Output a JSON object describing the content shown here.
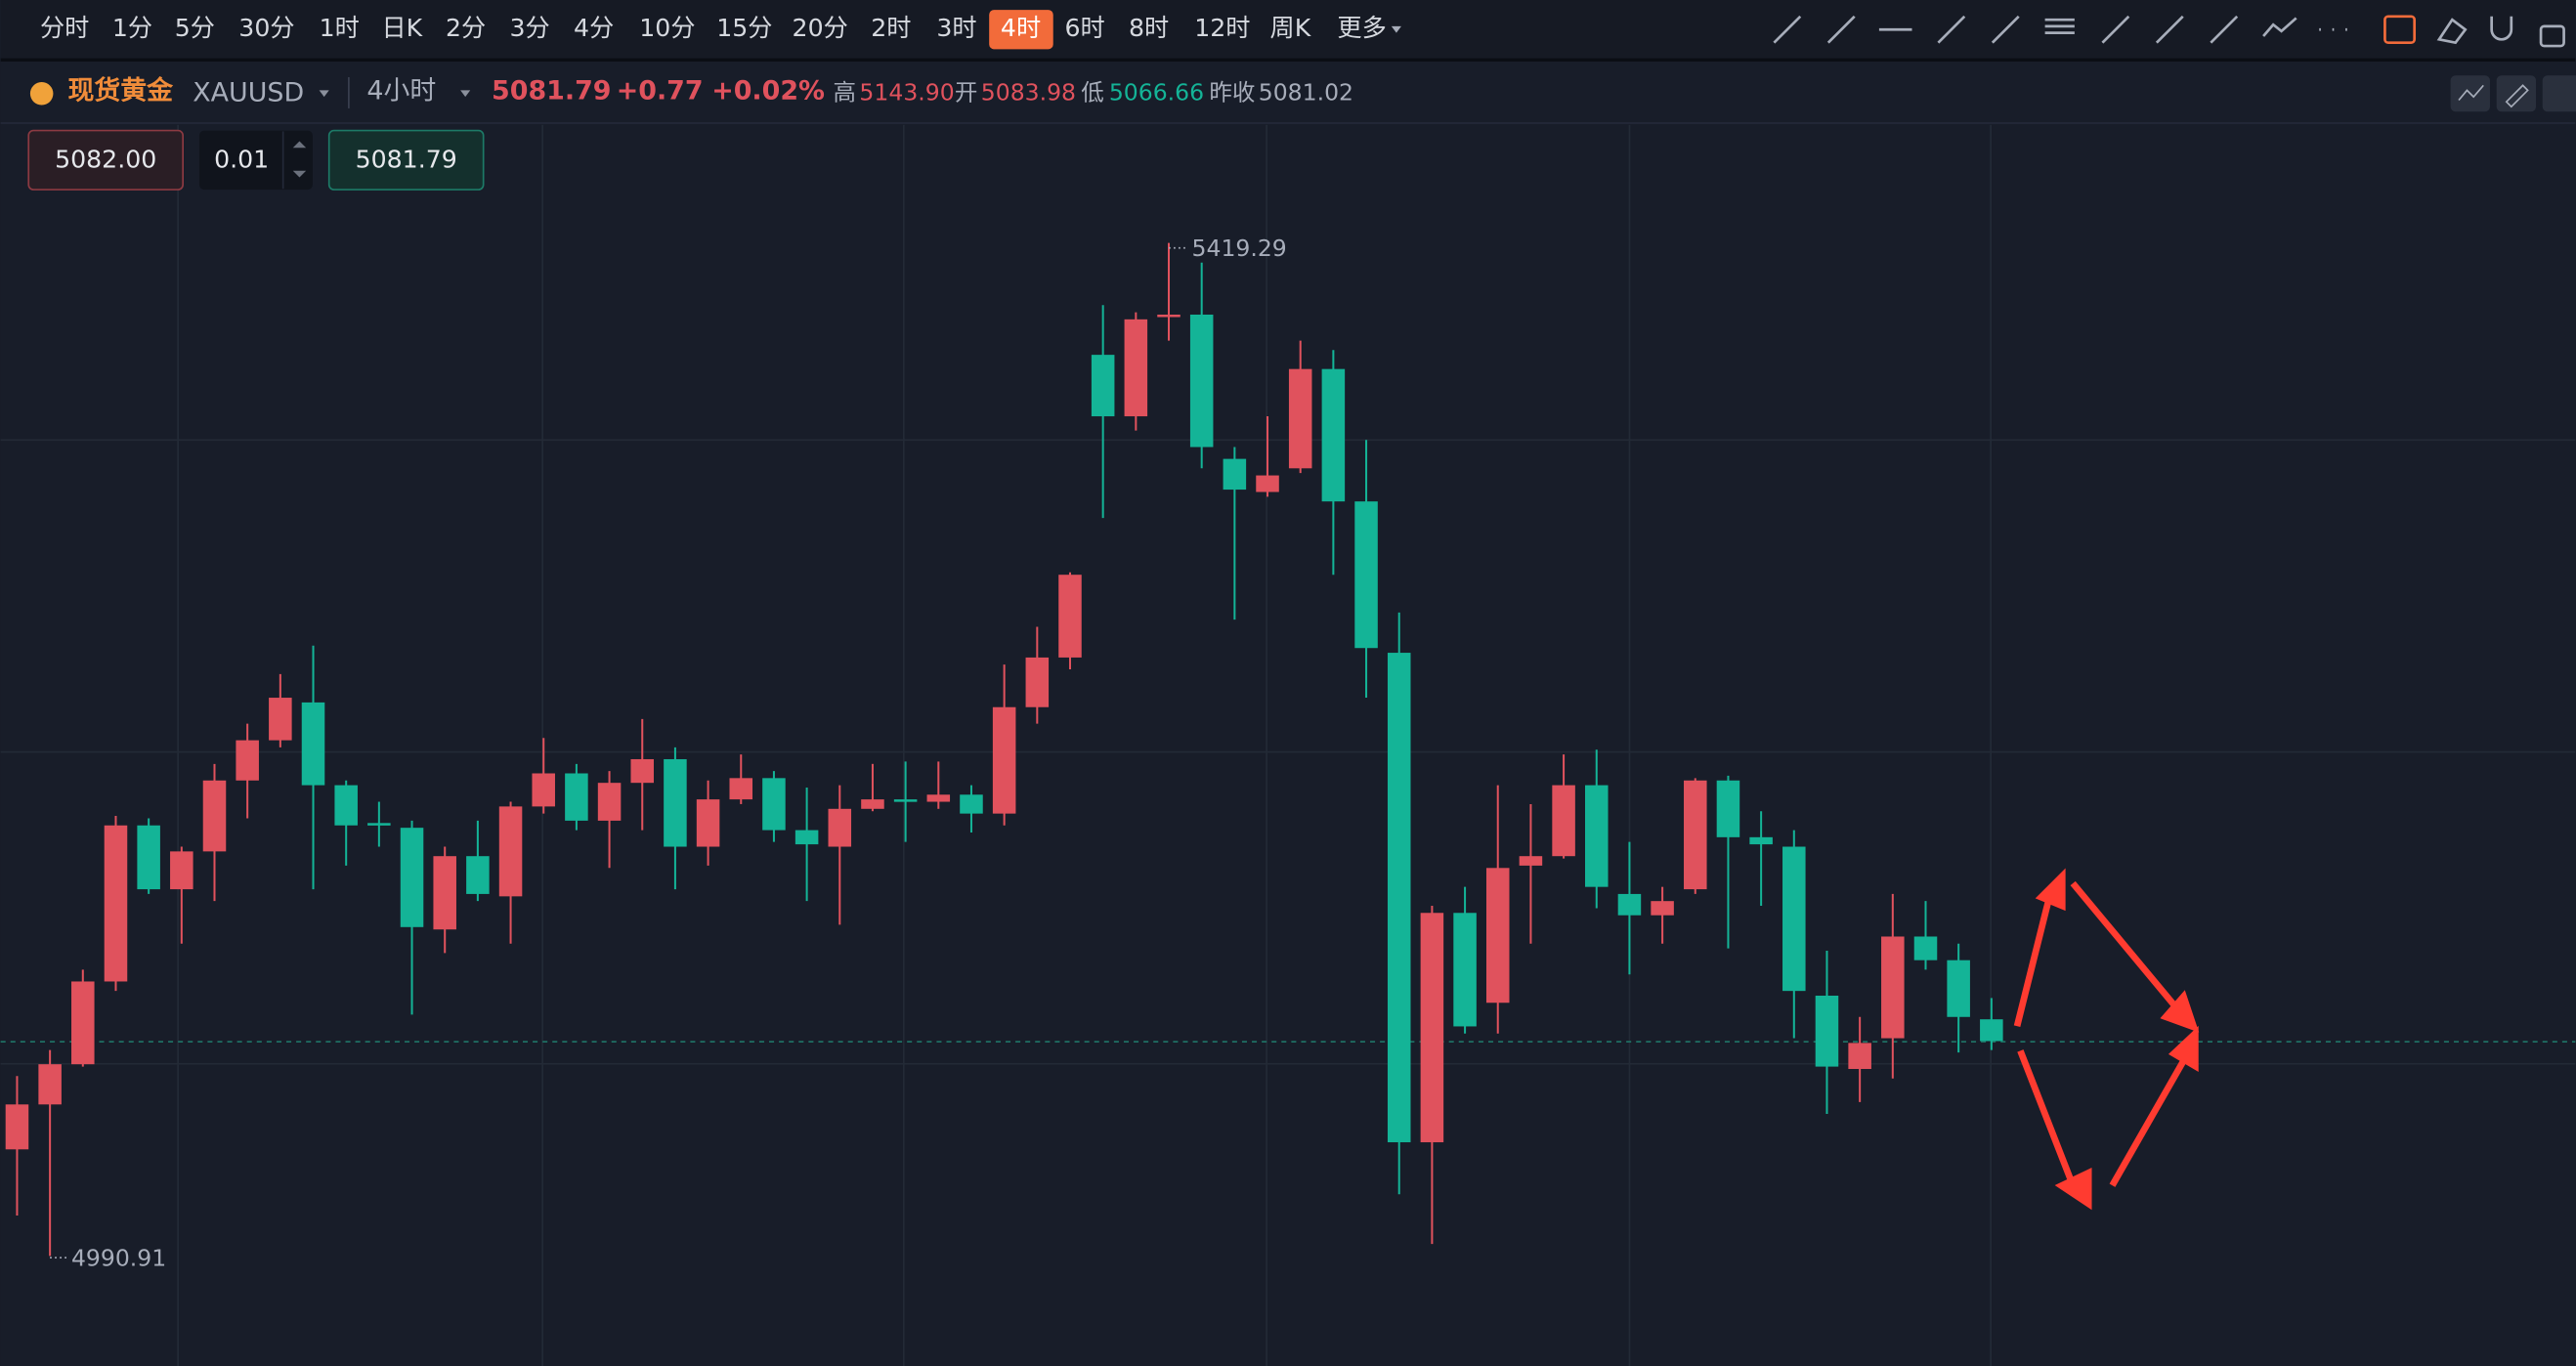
{
  "toolbar": {
    "intervals": [
      "分时",
      "1分",
      "5分",
      "30分",
      "1时",
      "日K",
      "2分",
      "3分",
      "4分",
      "10分",
      "15分",
      "20分",
      "2时",
      "3时",
      "4时",
      "6时",
      "8时",
      "12时",
      "周K",
      "更多"
    ],
    "active": 14
  },
  "header": {
    "name": "现货黄金",
    "symbol": "XAUUSD",
    "interval": "4小时",
    "price": "5081.79",
    "change": "+0.77",
    "change_pct": "+0.02%",
    "high_label": "高",
    "high": "5143.90",
    "open_label": "开",
    "open": "5083.98",
    "low_label": "低",
    "low": "5066.66",
    "prev_label": "昨收",
    "prev": "5081.02"
  },
  "order": {
    "sell": "5082.00",
    "qty": "0.01",
    "buy": "5081.79"
  },
  "chart_data": {
    "type": "candlestick",
    "up_color": "#e0525d",
    "down_color": "#14b497",
    "open": [
      5036,
      5055,
      5072,
      5107,
      5173,
      5146,
      5162,
      5192,
      5209,
      5225,
      5190,
      5174,
      5172,
      5129,
      5160,
      5143,
      5181,
      5195,
      5175,
      5191,
      5201,
      5164,
      5184,
      5193,
      5171,
      5164,
      5180,
      5184,
      5183,
      5186,
      5178,
      5223,
      5244,
      5372,
      5346,
      5388,
      5389,
      5328,
      5314,
      5324,
      5366,
      5310,
      5246,
      5039,
      5136,
      5098,
      5156,
      5160,
      5190,
      5144,
      5135,
      5146,
      5192,
      5168,
      5164,
      5101,
      5070,
      5083,
      5126,
      5116,
      5091
    ],
    "high": [
      5067,
      5078,
      5112,
      5177,
      5176,
      5164,
      5199,
      5216,
      5237,
      5249,
      5192,
      5183,
      5175,
      5164,
      5175,
      5183,
      5210,
      5199,
      5196,
      5218,
      5206,
      5192,
      5203,
      5196,
      5189,
      5190,
      5199,
      5200,
      5200,
      5190,
      5241,
      5257,
      5280,
      5393,
      5390,
      5419.29,
      5411,
      5333,
      5346,
      5378,
      5374,
      5336,
      5263,
      5139,
      5147,
      5190,
      5182,
      5203,
      5205,
      5166,
      5147,
      5193,
      5194,
      5179,
      5171,
      5120,
      5092,
      5144,
      5141,
      5123,
      5100
    ],
    "low": [
      5008,
      4990.91,
      5071,
      5103,
      5144,
      5123,
      5141,
      5176,
      5206,
      5146,
      5156,
      5164,
      5093,
      5119,
      5141,
      5123,
      5178,
      5171,
      5155,
      5171,
      5146,
      5156,
      5182,
      5166,
      5141,
      5131,
      5179,
      5166,
      5180,
      5170,
      5173,
      5216,
      5239,
      5303,
      5340,
      5378,
      5324,
      5260,
      5312,
      5322,
      5279,
      5227,
      5017,
      4996,
      5085,
      5085,
      5123,
      5159,
      5138,
      5110,
      5123,
      5144,
      5121,
      5139,
      5083,
      5051,
      5056,
      5066,
      5112,
      5077,
      5078
    ],
    "close": [
      5055,
      5072,
      5107,
      5173,
      5146,
      5162,
      5192,
      5209,
      5227,
      5190,
      5173,
      5173,
      5130,
      5160,
      5144,
      5181,
      5195,
      5175,
      5191,
      5201,
      5164,
      5184,
      5193,
      5171,
      5165,
      5180,
      5184,
      5183,
      5186,
      5178,
      5223,
      5244,
      5279,
      5346,
      5387,
      5389,
      5333,
      5315,
      5321,
      5366,
      5310,
      5248,
      5039,
      5136,
      5088,
      5155,
      5160,
      5190,
      5147,
      5135,
      5141,
      5192,
      5168,
      5165,
      5103,
      5071,
      5081,
      5126,
      5116,
      5092,
      5081.79
    ]
  }
}
